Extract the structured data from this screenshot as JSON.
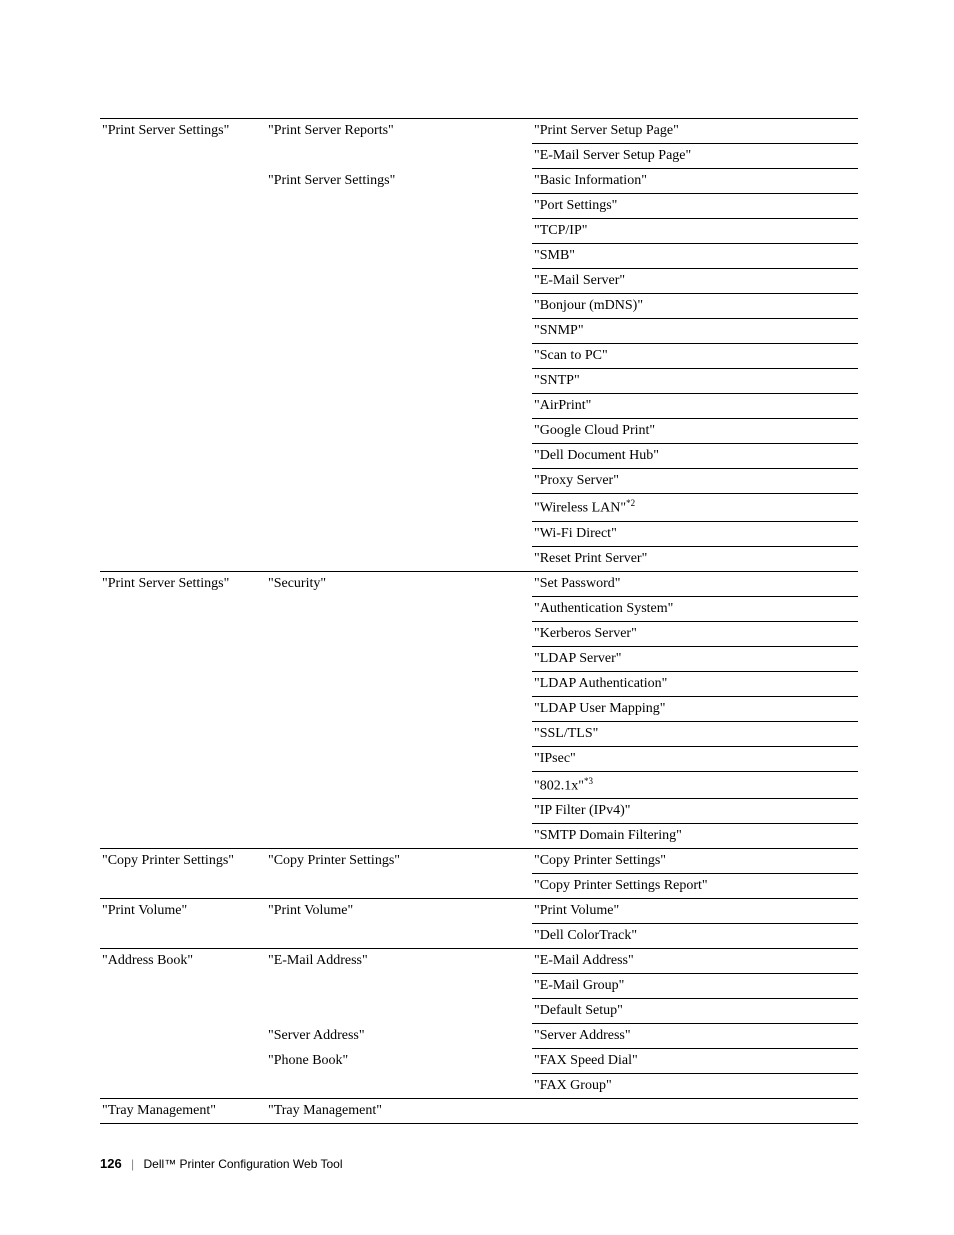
{
  "footer": {
    "page_number": "126",
    "title": "Dell™ Printer Configuration Web Tool"
  },
  "rows": [
    {
      "c1": "\"Print Server Settings\"",
      "c2": "\"Print Server Reports\"",
      "c3": "\"Print Server Setup Page\"",
      "topAll": true
    },
    {
      "c1": "",
      "c2": "",
      "c3": "\"E-Mail Server Setup Page\"",
      "c3Top": true
    },
    {
      "c1": "",
      "c2": "\"Print Server Settings\"",
      "c3": "\"Basic Information\"",
      "c3Top": true
    },
    {
      "c1": "",
      "c2": "",
      "c3": "\"Port Settings\"",
      "c3Top": true
    },
    {
      "c1": "",
      "c2": "",
      "c3": "\"TCP/IP\"",
      "c3Top": true
    },
    {
      "c1": "",
      "c2": "",
      "c3": "\"SMB\"",
      "c3Top": true
    },
    {
      "c1": "",
      "c2": "",
      "c3": "\"E-Mail Server\"",
      "c3Top": true
    },
    {
      "c1": "",
      "c2": "",
      "c3": "\"Bonjour (mDNS)\"",
      "c3Top": true
    },
    {
      "c1": "",
      "c2": "",
      "c3": "\"SNMP\"",
      "c3Top": true
    },
    {
      "c1": "",
      "c2": "",
      "c3": "\"Scan to PC\"",
      "c3Top": true
    },
    {
      "c1": "",
      "c2": "",
      "c3": "\"SNTP\"",
      "c3Top": true
    },
    {
      "c1": "",
      "c2": "",
      "c3": "\"AirPrint\"",
      "c3Top": true
    },
    {
      "c1": "",
      "c2": "",
      "c3": "\"Google Cloud Print\"",
      "c3Top": true
    },
    {
      "c1": "",
      "c2": "",
      "c3": "\"Dell Document Hub\"",
      "c3Top": true
    },
    {
      "c1": "",
      "c2": "",
      "c3": "\"Proxy Server\"",
      "c3Top": true
    },
    {
      "c1": "",
      "c2": "",
      "c3": "\"Wireless LAN\"",
      "sup": "*2",
      "c3Top": true
    },
    {
      "c1": "",
      "c2": "",
      "c3": "\"Wi-Fi Direct\"",
      "c3Top": true
    },
    {
      "c1": "",
      "c2": "",
      "c3": "\"Reset Print Server\"",
      "c3Top": true
    },
    {
      "c1": "\"Print Server Settings\"",
      "c2": "\"Security\"",
      "c3": "\"Set Password\"",
      "topAll": true
    },
    {
      "c1": "",
      "c2": "",
      "c3": "\"Authentication System\"",
      "c3Top": true
    },
    {
      "c1": "",
      "c2": "",
      "c3": "\"Kerberos Server\"",
      "c3Top": true
    },
    {
      "c1": "",
      "c2": "",
      "c3": "\"LDAP Server\"",
      "c3Top": true
    },
    {
      "c1": "",
      "c2": "",
      "c3": "\"LDAP Authentication\"",
      "c3Top": true
    },
    {
      "c1": "",
      "c2": "",
      "c3": "\"LDAP User Mapping\"",
      "c3Top": true
    },
    {
      "c1": "",
      "c2": "",
      "c3": "\"SSL/TLS\"",
      "c3Top": true
    },
    {
      "c1": "",
      "c2": "",
      "c3": "\"IPsec\"",
      "c3Top": true
    },
    {
      "c1": "",
      "c2": "",
      "c3": "\"802.1x\"",
      "sup": "*3",
      "c3Top": true
    },
    {
      "c1": "",
      "c2": "",
      "c3": "\"IP Filter (IPv4)\"",
      "c3Top": true
    },
    {
      "c1": "",
      "c2": "",
      "c3": "\"SMTP Domain Filtering\"",
      "c3Top": true
    },
    {
      "c1": "\"Copy Printer Settings\"",
      "c2": "\"Copy Printer Settings\"",
      "c3": "\"Copy Printer Settings\"",
      "topAll": true
    },
    {
      "c1": "",
      "c2": "",
      "c3": "\"Copy Printer Settings Report\"",
      "c3Top": true
    },
    {
      "c1": "\"Print Volume\"",
      "c2": "\"Print Volume\"",
      "c3": "\"Print Volume\"",
      "topAll": true
    },
    {
      "c1": "",
      "c2": "",
      "c3": "\"Dell ColorTrack\"",
      "c3Top": true
    },
    {
      "c1": "\"Address Book\"",
      "c2": "\"E-Mail Address\"",
      "c3": "\"E-Mail Address\"",
      "topAll": true
    },
    {
      "c1": "",
      "c2": "",
      "c3": "\"E-Mail Group\"",
      "c3Top": true
    },
    {
      "c1": "",
      "c2": "",
      "c3": "\"Default Setup\"",
      "c3Top": true
    },
    {
      "c1": "",
      "c2": "\"Server Address\"",
      "c3": "\"Server Address\"",
      "c3Top": true
    },
    {
      "c1": "",
      "c2": "\"Phone Book\"",
      "c3": "\"FAX Speed Dial\"",
      "c3Top": true
    },
    {
      "c1": "",
      "c2": "",
      "c3": "\"FAX Group\"",
      "c3Top": true
    },
    {
      "c1": "\"Tray Management\"",
      "c2": "\"Tray Management\"",
      "c3": "",
      "topAll": true,
      "bottomAll": true
    }
  ]
}
